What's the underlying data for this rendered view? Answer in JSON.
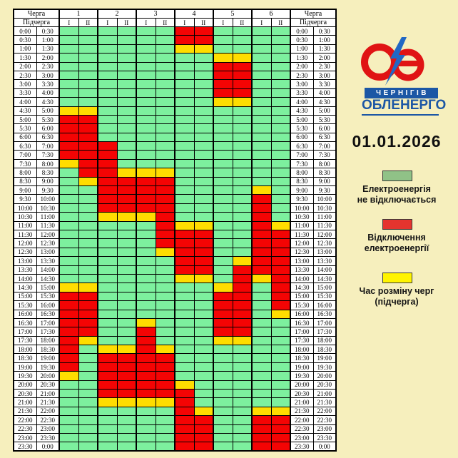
{
  "date_label": "01.01.2026",
  "brand": {
    "city": "ЧЕРНІГІВ",
    "company": "ОБЛЕНЕРГО"
  },
  "table_labels": {
    "corner_queue": "Черга",
    "corner_subqueue": "Підчерга",
    "queues": [
      "1",
      "2",
      "3",
      "4",
      "5",
      "6"
    ],
    "subqueues": [
      "I",
      "II"
    ]
  },
  "legend": {
    "items": [
      {
        "key": "green",
        "line1": "Електроенергія",
        "line2": "не відключається"
      },
      {
        "key": "red",
        "line1": "Відключення",
        "line2": "електроенергії"
      },
      {
        "key": "yellow",
        "line1": "Час розміну черг",
        "line2": "(підчерга)"
      }
    ]
  },
  "colors": {
    "background": "#F6EFBD",
    "cell_green": "#7DF09E",
    "cell_red": "#F40404",
    "cell_yellow": "#FFDD00",
    "legend_green": "#90C287",
    "legend_red": "#E5342E",
    "legend_yellow": "#FFF400",
    "brand_blue": "#1C57A5",
    "bolt_blue": "#2268C4",
    "logo_red": "#E01414"
  },
  "chart_data": {
    "type": "heatmap",
    "title": "Графік відключень електроенергії 01.01.2026",
    "columns": [
      "1-I",
      "1-II",
      "2-I",
      "2-II",
      "3-I",
      "3-II",
      "4-I",
      "4-II",
      "5-I",
      "5-II",
      "6-I",
      "6-II"
    ],
    "value_legend": {
      "G": "електроенергія не відключається",
      "R": "відключення електроенергії",
      "Y": "час розміну черг (підчерга)"
    },
    "rows": [
      {
        "s": "0:00",
        "e": "0:30",
        "v": "GGGGGGRRGGGG"
      },
      {
        "s": "0:30",
        "e": "1:00",
        "v": "GGGGGGRRGGGG"
      },
      {
        "s": "1:00",
        "e": "1:30",
        "v": "GGGGGGYYGGGG"
      },
      {
        "s": "1:30",
        "e": "2:00",
        "v": "GGGGGGGGYYGG"
      },
      {
        "s": "2:00",
        "e": "2:30",
        "v": "GGGGGGGGRRGG"
      },
      {
        "s": "2:30",
        "e": "3:00",
        "v": "GGGGGGGGRRGG"
      },
      {
        "s": "3:00",
        "e": "3:30",
        "v": "GGGGGGGGRRGG"
      },
      {
        "s": "3:30",
        "e": "4:00",
        "v": "GGGGGGGGRRGG"
      },
      {
        "s": "4:00",
        "e": "4:30",
        "v": "GGGGGGGGYYGG"
      },
      {
        "s": "4:30",
        "e": "5:00",
        "v": "YYGGGGGGGGGG"
      },
      {
        "s": "5:00",
        "e": "5:30",
        "v": "RRGGGGGGGGGG"
      },
      {
        "s": "5:30",
        "e": "6:00",
        "v": "RRGGGGGGGGGG"
      },
      {
        "s": "6:00",
        "e": "6:30",
        "v": "RRGGGGGGGGGG"
      },
      {
        "s": "6:30",
        "e": "7:00",
        "v": "RRRGGGGGGGGG"
      },
      {
        "s": "7:00",
        "e": "7:30",
        "v": "RRRGGGGGGGGG"
      },
      {
        "s": "7:30",
        "e": "8:00",
        "v": "YRRGGGGGGGGG"
      },
      {
        "s": "8:00",
        "e": "8:30",
        "v": "GRRYYYGGGGGG"
      },
      {
        "s": "8:30",
        "e": "9:00",
        "v": "GYRRRRGGGGGG"
      },
      {
        "s": "9:00",
        "e": "9:30",
        "v": "GGRRRRGGGGYG"
      },
      {
        "s": "9:30",
        "e": "10:00",
        "v": "GGRRRRGGGGRG"
      },
      {
        "s": "10:00",
        "e": "10:30",
        "v": "GGRRRRGGGGRG"
      },
      {
        "s": "10:30",
        "e": "11:00",
        "v": "GGYYYRGGGGRG"
      },
      {
        "s": "11:00",
        "e": "11:30",
        "v": "GGGGGRYYGGRY"
      },
      {
        "s": "11:30",
        "e": "12:00",
        "v": "GGGGGRRRGGRR"
      },
      {
        "s": "12:00",
        "e": "12:30",
        "v": "GGGGGRRRGGRR"
      },
      {
        "s": "12:30",
        "e": "13:00",
        "v": "GGGGGYRRGGRR"
      },
      {
        "s": "13:00",
        "e": "13:30",
        "v": "GGGGGGRRGYRR"
      },
      {
        "s": "13:30",
        "e": "14:00",
        "v": "GGGGGGRRGRRR"
      },
      {
        "s": "14:00",
        "e": "14:30",
        "v": "GGGGGGYYGRYR"
      },
      {
        "s": "14:30",
        "e": "15:00",
        "v": "YYGGGGGGYRGR"
      },
      {
        "s": "15:00",
        "e": "15:30",
        "v": "RRGGGGGGRRGR"
      },
      {
        "s": "15:30",
        "e": "16:00",
        "v": "RRGGGGGGRRGR"
      },
      {
        "s": "16:00",
        "e": "16:30",
        "v": "RRGGGGGGRRGY"
      },
      {
        "s": "16:30",
        "e": "17:00",
        "v": "RRGGYGGGRRGG"
      },
      {
        "s": "17:00",
        "e": "17:30",
        "v": "RRGGRGGGRRGG"
      },
      {
        "s": "17:30",
        "e": "18:00",
        "v": "RYGGRGGGYYGG"
      },
      {
        "s": "18:00",
        "e": "18:30",
        "v": "RGYYRYGGGGGG"
      },
      {
        "s": "18:30",
        "e": "19:00",
        "v": "RGRRRRGGGGGG"
      },
      {
        "s": "19:00",
        "e": "19:30",
        "v": "RGRRRRGGGGGG"
      },
      {
        "s": "19:30",
        "e": "20:00",
        "v": "YGRRRRGGGGGG"
      },
      {
        "s": "20:00",
        "e": "20:30",
        "v": "GGRRRRYGGGGG"
      },
      {
        "s": "20:30",
        "e": "21:00",
        "v": "GGRRRRRGGGGG"
      },
      {
        "s": "21:00",
        "e": "21:30",
        "v": "GGYYYYRGGGGG"
      },
      {
        "s": "21:30",
        "e": "22:00",
        "v": "GGGGGGRYGGYY"
      },
      {
        "s": "22:00",
        "e": "22:30",
        "v": "GGGGGGRRGGRR"
      },
      {
        "s": "22:30",
        "e": "23:00",
        "v": "GGGGGGRRGGRR"
      },
      {
        "s": "23:00",
        "e": "23:30",
        "v": "GGGGGGRRGGRR"
      },
      {
        "s": "23:30",
        "e": "0:00",
        "v": "GGGGGGRRGGRR"
      }
    ]
  }
}
